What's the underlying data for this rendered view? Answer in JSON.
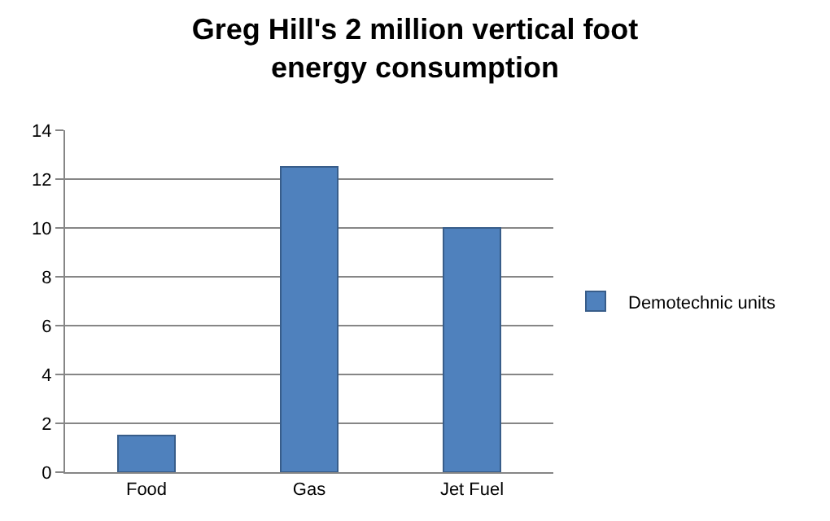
{
  "chart_data": {
    "type": "bar",
    "title": "Greg Hill's 2 million vertical foot energy consumption",
    "categories": [
      "Food",
      "Gas",
      "Jet Fuel"
    ],
    "series": [
      {
        "name": "Demotechnic units",
        "color": "#4f81bd",
        "values": [
          1.5,
          12.5,
          10
        ]
      }
    ],
    "ylim": [
      0,
      14
    ],
    "yticks": [
      0,
      2,
      4,
      6,
      8,
      10,
      12,
      14
    ],
    "grid": "y",
    "legend": "right"
  }
}
